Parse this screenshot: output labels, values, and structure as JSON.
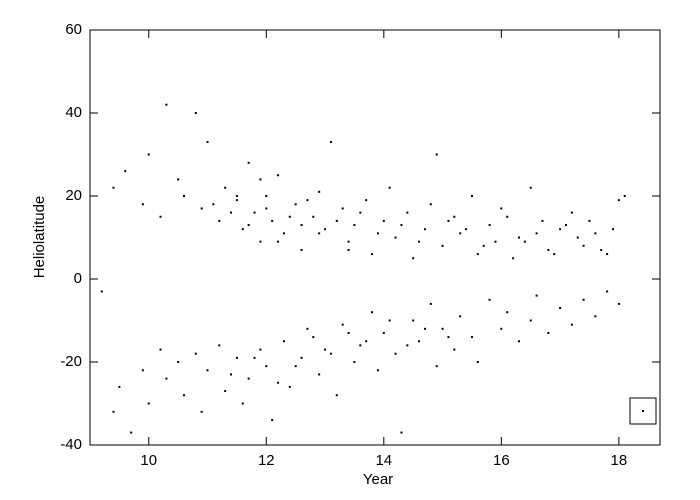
{
  "chart_data": {
    "type": "scatter",
    "x_label": "Year",
    "y_label": "Heliolatitude",
    "x": [
      9.4,
      9.6,
      9.9,
      10.0,
      10.2,
      10.3,
      10.5,
      10.6,
      10.8,
      10.9,
      11.0,
      11.2,
      11.3,
      11.5,
      11.6,
      11.7,
      11.8,
      11.9,
      12.0,
      12.1,
      12.2,
      12.3,
      12.5,
      12.6,
      12.8,
      12.9,
      13.0,
      13.1,
      13.3,
      13.4,
      13.5,
      13.7,
      13.8,
      14.0,
      14.1,
      14.2,
      14.4,
      14.5,
      14.7,
      14.8,
      14.9,
      15.0,
      15.2,
      15.3,
      15.5,
      15.6,
      15.8,
      15.9,
      16.0,
      16.2,
      16.3,
      16.5,
      16.7,
      16.8,
      17.0,
      17.2,
      17.4,
      17.6,
      17.8,
      18.0,
      11.1,
      11.4,
      11.5,
      11.7,
      11.9,
      12.0,
      12.2,
      12.4,
      12.6,
      12.7,
      12.9,
      13.2,
      13.4,
      13.6,
      13.9,
      14.3,
      14.6,
      15.1,
      15.4,
      15.7,
      16.1,
      16.4,
      16.6,
      16.9,
      17.1,
      17.3,
      17.5,
      17.7,
      17.9,
      18.1,
      9.2,
      9.4,
      9.5,
      9.7,
      9.9,
      10.0,
      10.2,
      10.3,
      10.5,
      10.6,
      10.8,
      10.9,
      11.0,
      11.2,
      11.3,
      11.5,
      11.6,
      11.7,
      11.9,
      12.0,
      12.1,
      12.3,
      12.4,
      12.6,
      12.7,
      12.9,
      13.0,
      13.2,
      13.3,
      13.5,
      13.6,
      13.8,
      13.9,
      14.0,
      14.2,
      14.3,
      14.5,
      14.6,
      14.8,
      14.9,
      15.0,
      15.2,
      15.3,
      15.5,
      15.6,
      15.8,
      16.0,
      16.1,
      16.3,
      16.5,
      16.6,
      16.8,
      17.0,
      17.2,
      17.4,
      17.6,
      17.8,
      18.0,
      11.4,
      11.8,
      12.2,
      12.5,
      12.8,
      13.1,
      13.4,
      13.7,
      14.1,
      14.4,
      14.7,
      15.1
    ],
    "values": [
      22,
      26,
      18,
      30,
      15,
      42,
      24,
      20,
      40,
      17,
      33,
      14,
      22,
      19,
      12,
      28,
      16,
      9,
      20,
      14,
      25,
      11,
      18,
      7,
      15,
      21,
      12,
      33,
      17,
      9,
      13,
      19,
      6,
      14,
      22,
      10,
      16,
      5,
      12,
      18,
      30,
      8,
      15,
      11,
      20,
      6,
      13,
      9,
      17,
      5,
      10,
      22,
      14,
      7,
      12,
      16,
      8,
      11,
      6,
      19,
      18,
      16,
      20,
      13,
      24,
      17,
      9,
      15,
      13,
      19,
      11,
      14,
      7,
      16,
      11,
      13,
      9,
      14,
      12,
      8,
      15,
      9,
      11,
      6,
      13,
      10,
      14,
      7,
      12,
      20,
      -3,
      -32,
      -26,
      -37,
      -22,
      -30,
      -17,
      -24,
      -20,
      -28,
      -18,
      -32,
      -22,
      -16,
      -27,
      -19,
      -30,
      -24,
      -17,
      -21,
      -34,
      -15,
      -26,
      -19,
      -12,
      -23,
      -17,
      -28,
      -11,
      -20,
      -16,
      -8,
      -22,
      -13,
      -18,
      -37,
      -10,
      -15,
      -6,
      -21,
      -12,
      -17,
      -9,
      -14,
      -20,
      -5,
      -12,
      -8,
      -15,
      -10,
      -4,
      -13,
      -7,
      -11,
      -5,
      -9,
      -3,
      -6,
      -23,
      -19,
      -25,
      -21,
      -14,
      -18,
      -13,
      -15,
      -10,
      -16,
      -12,
      -14
    ],
    "color": "#000000",
    "xlim": [
      9.0,
      18.7
    ],
    "xticks": [
      10,
      12,
      14,
      16,
      18
    ],
    "ylim": [
      -40,
      60
    ],
    "yticks": [
      -40,
      -20,
      0,
      20,
      40,
      60
    ]
  }
}
